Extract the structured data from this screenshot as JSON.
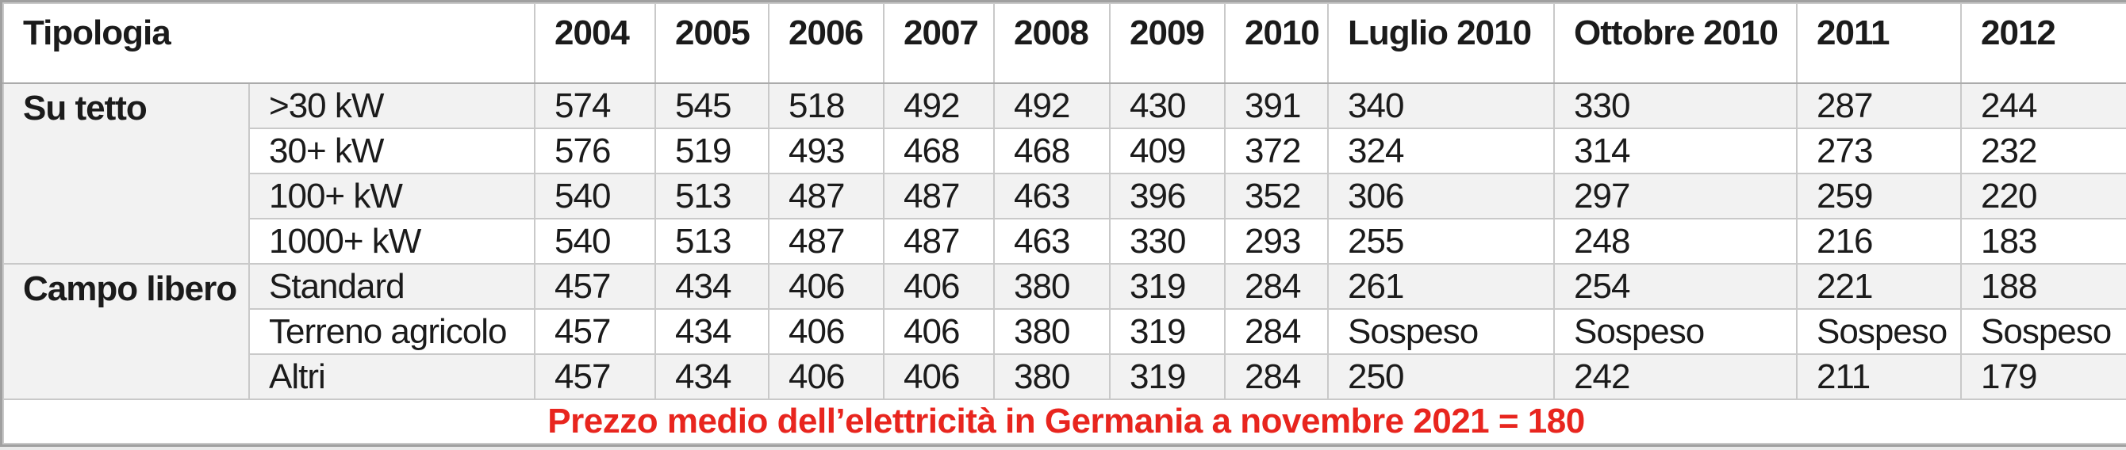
{
  "table": {
    "corner_header": "Tipologia",
    "year_headers": [
      "2004",
      "2005",
      "2006",
      "2007",
      "2008",
      "2009",
      "2010",
      "Luglio 2010",
      "Ottobre 2010",
      "2011",
      "2012"
    ],
    "groups": [
      {
        "label": "Su tetto",
        "rows": [
          {
            "subcategory": ">30 kW",
            "values": [
              "574",
              "545",
              "518",
              "492",
              "492",
              "430",
              "391",
              "340",
              "330",
              "287",
              "244"
            ]
          },
          {
            "subcategory": "30+ kW",
            "values": [
              "576",
              "519",
              "493",
              "468",
              "468",
              "409",
              "372",
              "324",
              "314",
              "273",
              "232"
            ]
          },
          {
            "subcategory": "100+ kW",
            "values": [
              "540",
              "513",
              "487",
              "487",
              "463",
              "396",
              "352",
              "306",
              "297",
              "259",
              "220"
            ]
          },
          {
            "subcategory": "1000+ kW",
            "values": [
              "540",
              "513",
              "487",
              "487",
              "463",
              "330",
              "293",
              "255",
              "248",
              "216",
              "183"
            ]
          }
        ]
      },
      {
        "label": "Campo libero",
        "rows": [
          {
            "subcategory": "Standard",
            "values": [
              "457",
              "434",
              "406",
              "406",
              "380",
              "319",
              "284",
              "261",
              "254",
              "221",
              "188"
            ]
          },
          {
            "subcategory": "Terreno agricolo",
            "values": [
              "457",
              "434",
              "406",
              "406",
              "380",
              "319",
              "284",
              "Sospeso",
              "Sospeso",
              "Sospeso",
              "Sospeso"
            ]
          },
          {
            "subcategory": "Altri",
            "values": [
              "457",
              "434",
              "406",
              "406",
              "380",
              "319",
              "284",
              "250",
              "242",
              "211",
              "179"
            ]
          }
        ]
      }
    ],
    "footer_note": "Prezzo medio dell’elettricità in Germania a novembre 2021 = 180"
  },
  "colors": {
    "stripe_gray": "#f2f2f2",
    "grid_line": "#c9c9c9",
    "outer_border": "#a0a0a0",
    "footer_red": "#e8251e",
    "text": "#1b1b1b"
  },
  "layout_meta": {
    "column_count": 13,
    "group_row_counts": [
      4,
      3
    ]
  }
}
